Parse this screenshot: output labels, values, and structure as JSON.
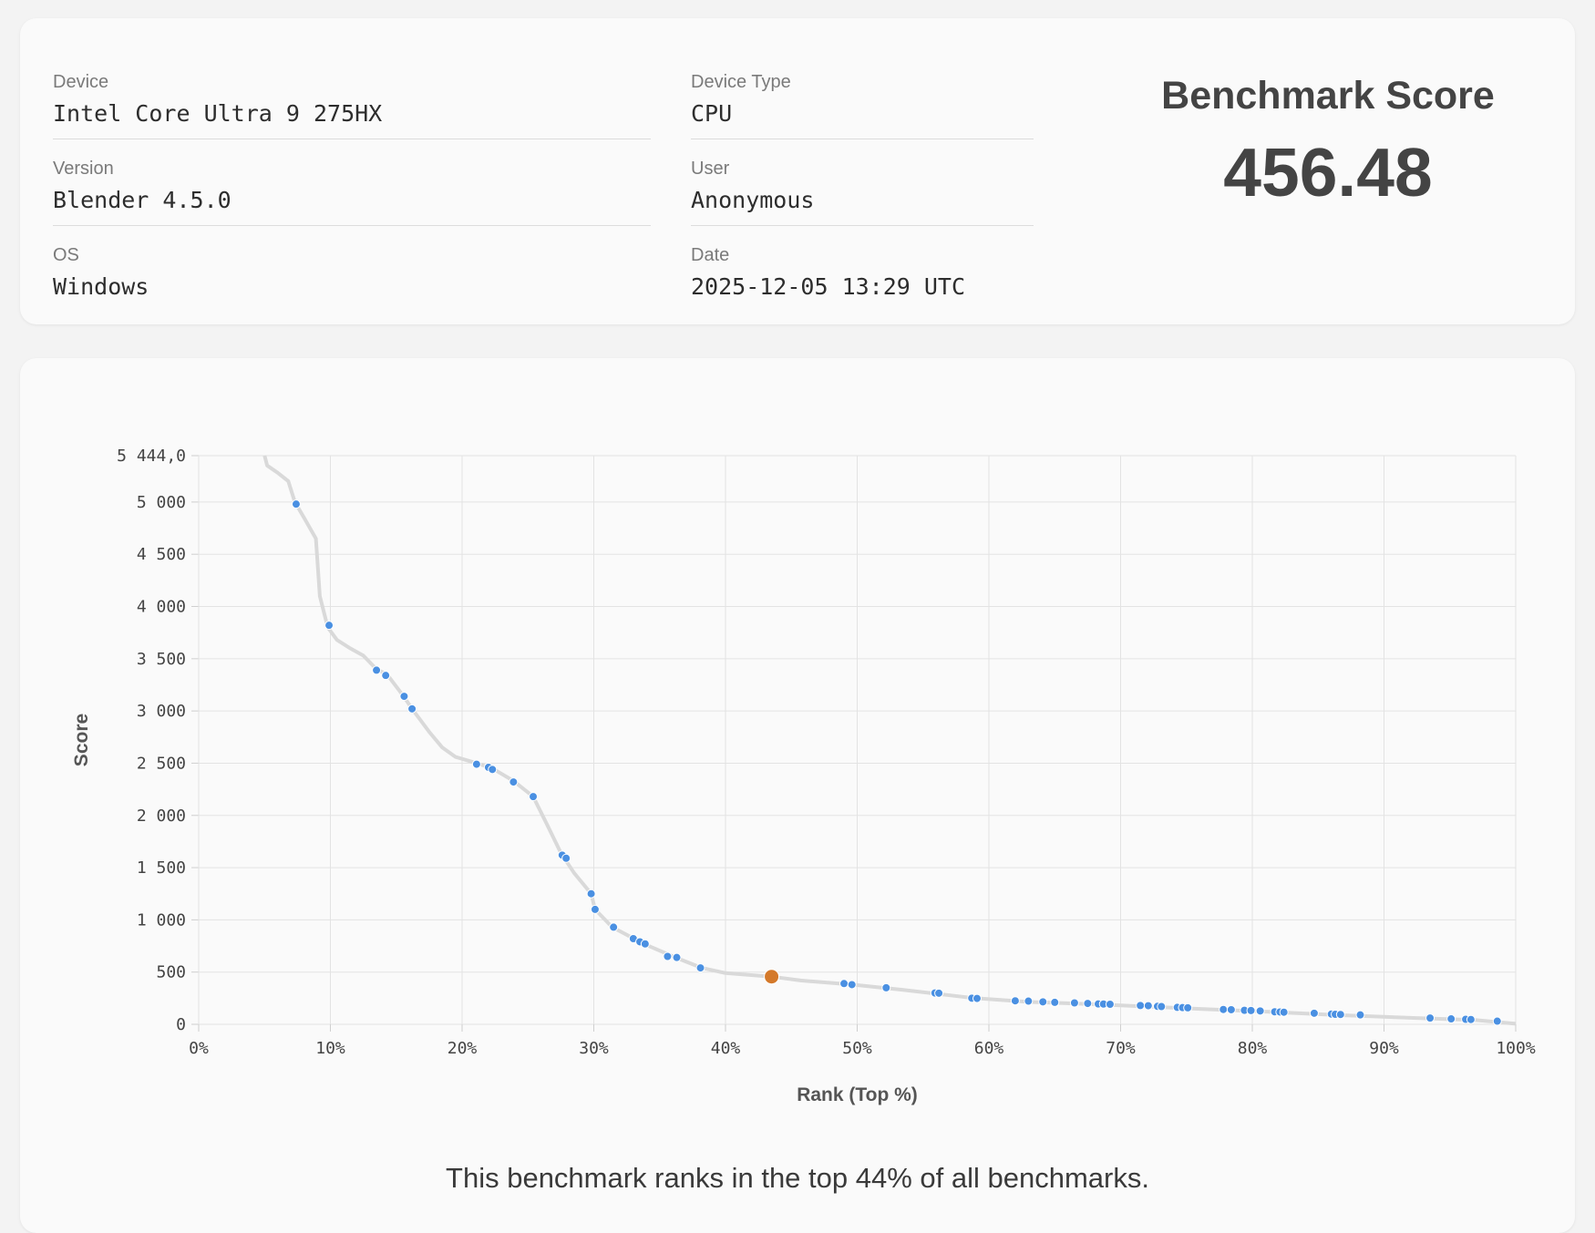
{
  "info": {
    "device_label": "Device",
    "device_value": "Intel Core Ultra 9 275HX",
    "version_label": "Version",
    "version_value": "Blender 4.5.0",
    "os_label": "OS",
    "os_value": "Windows",
    "device_type_label": "Device Type",
    "device_type_value": "CPU",
    "user_label": "User",
    "user_value": "Anonymous",
    "date_label": "Date",
    "date_value": "2025-12-05 13:29 UTC"
  },
  "score": {
    "title": "Benchmark Score",
    "value": "456.48"
  },
  "summary": "This benchmark ranks in the top 44% of all benchmarks.",
  "chart_data": {
    "type": "scatter",
    "xlabel": "Rank (Top %)",
    "ylabel": "Score",
    "xlim": [
      0,
      100
    ],
    "ylim": [
      0,
      5444
    ],
    "x_ticks": [
      0,
      10,
      20,
      30,
      40,
      50,
      60,
      70,
      80,
      90,
      100
    ],
    "x_tick_labels": [
      "0%",
      "10%",
      "20%",
      "30%",
      "40%",
      "50%",
      "60%",
      "70%",
      "80%",
      "90%",
      "100%"
    ],
    "y_ticks": [
      0,
      500,
      1000,
      1500,
      2000,
      2500,
      3000,
      3500,
      4000,
      4500,
      5000,
      5444
    ],
    "y_tick_labels": [
      "0",
      "500",
      "1 000",
      "1 500",
      "2 000",
      "2 500",
      "3 000",
      "3 500",
      "4 000",
      "4 500",
      "5 000",
      "5 444,0"
    ],
    "grid": true,
    "colors": {
      "curve": "#d9d9d9",
      "points": "#4a90e2",
      "highlight": "#d4792a",
      "grid": "#e3e3e3"
    },
    "curve": [
      [
        5,
        5444
      ],
      [
        5.2,
        5350
      ],
      [
        6,
        5280
      ],
      [
        6.8,
        5200
      ],
      [
        7.3,
        5000
      ],
      [
        8,
        4850
      ],
      [
        8.9,
        4650
      ],
      [
        9.2,
        4100
      ],
      [
        9.8,
        3800
      ],
      [
        10.5,
        3680
      ],
      [
        11.5,
        3600
      ],
      [
        12.5,
        3530
      ],
      [
        13.5,
        3400
      ],
      [
        14.3,
        3350
      ],
      [
        15.5,
        3150
      ],
      [
        16.2,
        3020
      ],
      [
        17.5,
        2800
      ],
      [
        18.5,
        2650
      ],
      [
        19.5,
        2560
      ],
      [
        21.1,
        2500
      ],
      [
        22.3,
        2450
      ],
      [
        23.9,
        2330
      ],
      [
        25.4,
        2180
      ],
      [
        26.5,
        1900
      ],
      [
        27.5,
        1640
      ],
      [
        28.5,
        1450
      ],
      [
        29.8,
        1250
      ],
      [
        30.1,
        1100
      ],
      [
        31.4,
        930
      ],
      [
        33.8,
        770
      ],
      [
        36.2,
        640
      ],
      [
        38.2,
        540
      ],
      [
        40,
        490
      ],
      [
        43.5,
        456
      ],
      [
        45.7,
        420
      ],
      [
        49.6,
        380
      ],
      [
        53.5,
        330
      ],
      [
        58.9,
        250
      ],
      [
        63,
        215
      ],
      [
        68.5,
        190
      ],
      [
        74.6,
        155
      ],
      [
        80.4,
        125
      ],
      [
        86.3,
        90
      ],
      [
        92,
        62
      ],
      [
        97,
        40
      ],
      [
        100,
        5
      ]
    ],
    "points": [
      [
        7.4,
        4980
      ],
      [
        9.9,
        3820
      ],
      [
        13.5,
        3390
      ],
      [
        14.2,
        3340
      ],
      [
        15.6,
        3140
      ],
      [
        16.2,
        3020
      ],
      [
        21.1,
        2490
      ],
      [
        22.0,
        2460
      ],
      [
        22.3,
        2440
      ],
      [
        23.9,
        2320
      ],
      [
        25.4,
        2180
      ],
      [
        27.6,
        1620
      ],
      [
        27.9,
        1590
      ],
      [
        29.8,
        1250
      ],
      [
        30.1,
        1100
      ],
      [
        31.5,
        930
      ],
      [
        33.0,
        820
      ],
      [
        33.5,
        790
      ],
      [
        33.9,
        770
      ],
      [
        35.6,
        650
      ],
      [
        36.3,
        640
      ],
      [
        38.1,
        540
      ],
      [
        49.0,
        390
      ],
      [
        49.6,
        380
      ],
      [
        52.2,
        350
      ],
      [
        55.9,
        300
      ],
      [
        56.2,
        298
      ],
      [
        58.7,
        250
      ],
      [
        59.1,
        248
      ],
      [
        62.0,
        225
      ],
      [
        63.0,
        222
      ],
      [
        64.1,
        215
      ],
      [
        65.0,
        210
      ],
      [
        66.5,
        205
      ],
      [
        67.5,
        200
      ],
      [
        68.3,
        195
      ],
      [
        68.7,
        194
      ],
      [
        69.2,
        192
      ],
      [
        71.5,
        180
      ],
      [
        72.1,
        178
      ],
      [
        72.8,
        172
      ],
      [
        73.1,
        170
      ],
      [
        74.3,
        162
      ],
      [
        74.7,
        160
      ],
      [
        75.1,
        158
      ],
      [
        77.8,
        142
      ],
      [
        78.4,
        140
      ],
      [
        79.4,
        134
      ],
      [
        79.9,
        132
      ],
      [
        80.6,
        128
      ],
      [
        81.7,
        120
      ],
      [
        82.1,
        118
      ],
      [
        82.4,
        116
      ],
      [
        84.7,
        106
      ],
      [
        86.0,
        98
      ],
      [
        86.3,
        96
      ],
      [
        86.7,
        94
      ],
      [
        88.2,
        90
      ],
      [
        93.5,
        60
      ],
      [
        95.1,
        52
      ],
      [
        96.2,
        48
      ],
      [
        96.6,
        46
      ],
      [
        98.6,
        30
      ]
    ],
    "highlight_point": [
      43.5,
      456
    ]
  }
}
